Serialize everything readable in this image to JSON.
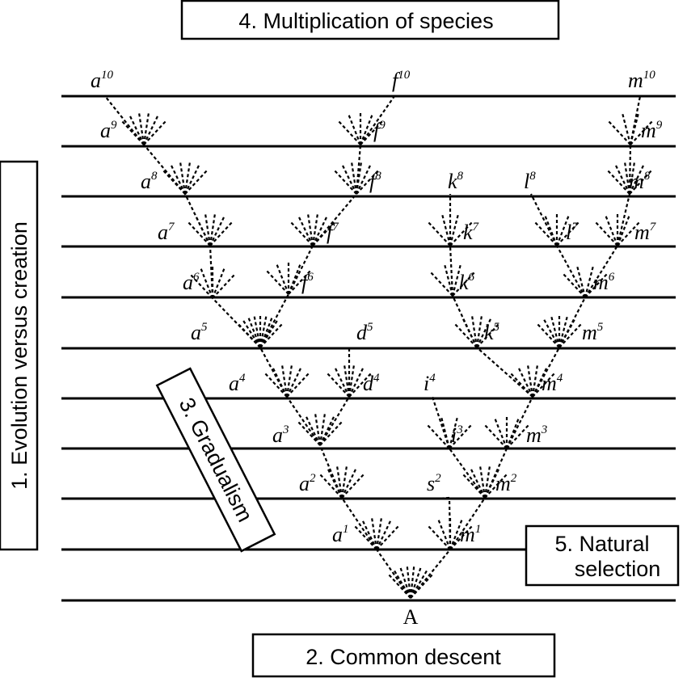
{
  "boxes": {
    "multiplication": "4. Multiplication of species",
    "common_descent": "2. Common descent",
    "evolution_vs_creation": "1. Evolution versus creation",
    "gradualism": "3. Gradualism",
    "natural_selection_line1": "5. Natural",
    "natural_selection_line2": "selection"
  },
  "ancestor_label": "A",
  "nodes": [
    {
      "id": "a10",
      "base": "a",
      "sup": "10"
    },
    {
      "id": "f10",
      "base": "f",
      "sup": "10"
    },
    {
      "id": "m10",
      "base": "m",
      "sup": "10"
    },
    {
      "id": "a9",
      "base": "a",
      "sup": "9"
    },
    {
      "id": "f9",
      "base": "f",
      "sup": "9"
    },
    {
      "id": "m9",
      "base": "m",
      "sup": "9"
    },
    {
      "id": "a8",
      "base": "a",
      "sup": "8"
    },
    {
      "id": "f8",
      "base": "f",
      "sup": "8"
    },
    {
      "id": "k8",
      "base": "k",
      "sup": "8"
    },
    {
      "id": "l8",
      "base": "l",
      "sup": "8"
    },
    {
      "id": "m8",
      "base": "m",
      "sup": "8"
    },
    {
      "id": "a7",
      "base": "a",
      "sup": "7"
    },
    {
      "id": "f7",
      "base": "f",
      "sup": "7"
    },
    {
      "id": "k7",
      "base": "k",
      "sup": "7"
    },
    {
      "id": "l7",
      "base": "l",
      "sup": "7"
    },
    {
      "id": "m7",
      "base": "m",
      "sup": "7"
    },
    {
      "id": "a6",
      "base": "a",
      "sup": "6"
    },
    {
      "id": "f6",
      "base": "f",
      "sup": "6"
    },
    {
      "id": "k6",
      "base": "k",
      "sup": "6"
    },
    {
      "id": "m6",
      "base": "m",
      "sup": "6"
    },
    {
      "id": "a5",
      "base": "a",
      "sup": "5"
    },
    {
      "id": "d5",
      "base": "d",
      "sup": "5"
    },
    {
      "id": "k5",
      "base": "k",
      "sup": "5"
    },
    {
      "id": "m5",
      "base": "m",
      "sup": "5"
    },
    {
      "id": "a4",
      "base": "a",
      "sup": "4"
    },
    {
      "id": "d4",
      "base": "d",
      "sup": "4"
    },
    {
      "id": "i4",
      "base": "i",
      "sup": "4"
    },
    {
      "id": "m4",
      "base": "m",
      "sup": "4"
    },
    {
      "id": "a3",
      "base": "a",
      "sup": "3"
    },
    {
      "id": "i3",
      "base": "i",
      "sup": "3"
    },
    {
      "id": "m3",
      "base": "m",
      "sup": "3"
    },
    {
      "id": "a2",
      "base": "a",
      "sup": "2"
    },
    {
      "id": "s2",
      "base": "s",
      "sup": "2"
    },
    {
      "id": "m2",
      "base": "m",
      "sup": "2"
    },
    {
      "id": "a1",
      "base": "a",
      "sup": "1"
    },
    {
      "id": "m1",
      "base": "m",
      "sup": "1"
    }
  ]
}
